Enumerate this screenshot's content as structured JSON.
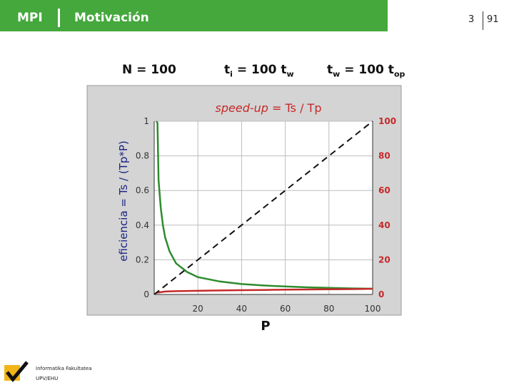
{
  "header": {
    "section": "MPI",
    "title": "Motivación",
    "page": "3",
    "total": "91"
  },
  "params": {
    "n": "N = 100",
    "ti_prefix": "t",
    "ti_sub": "i",
    "ti_rest": " = 100 t",
    "ti_sub2": "w",
    "tw_prefix": "t",
    "tw_sub": "w",
    "tw_rest": " = 100 t",
    "tw_sub2": "op"
  },
  "footer": {
    "line1": "Informatika Fakultatea",
    "line2": "UPV/EHU"
  },
  "chart_data": {
    "type": "line",
    "title_italic": "speed-up",
    "title_rest": " = Ts / Tp",
    "xlabel": "P",
    "ylabel_left": "eficiencia = Ts / (Tp*P)",
    "x_ticks": [
      "20",
      "40",
      "60",
      "80",
      "100"
    ],
    "y_left_ticks": [
      "0",
      "0.2",
      "0.4",
      "0.6",
      "0.8",
      "1"
    ],
    "y_right_ticks": [
      "0",
      "20",
      "40",
      "60",
      "80",
      "100"
    ],
    "xlim": [
      0,
      100
    ],
    "ylim_left": [
      0,
      1
    ],
    "ylim_right": [
      0,
      100
    ],
    "grid": true,
    "series": [
      {
        "axis": "left",
        "color": "#2e8b2e",
        "style": "solid",
        "x": [
          1,
          1.5,
          2,
          3,
          4,
          5,
          7,
          10,
          15,
          20,
          30,
          40,
          50,
          60,
          70,
          80,
          90,
          100
        ],
        "y": [
          1.0,
          0.99,
          0.66,
          0.5,
          0.4,
          0.33,
          0.25,
          0.18,
          0.13,
          0.1,
          0.075,
          0.06,
          0.052,
          0.046,
          0.041,
          0.038,
          0.035,
          0.033
        ]
      },
      {
        "axis": "right",
        "color": "#c62828",
        "style": "solid",
        "x": [
          1,
          5,
          10,
          20,
          30,
          40,
          50,
          60,
          70,
          80,
          90,
          100
        ],
        "y": [
          1,
          1.7,
          1.9,
          2.1,
          2.3,
          2.45,
          2.6,
          2.75,
          2.9,
          3.0,
          3.1,
          3.3
        ]
      },
      {
        "axis": "right",
        "color": "#111111",
        "style": "dashed",
        "x": [
          0,
          100
        ],
        "y": [
          0,
          100
        ]
      }
    ]
  }
}
